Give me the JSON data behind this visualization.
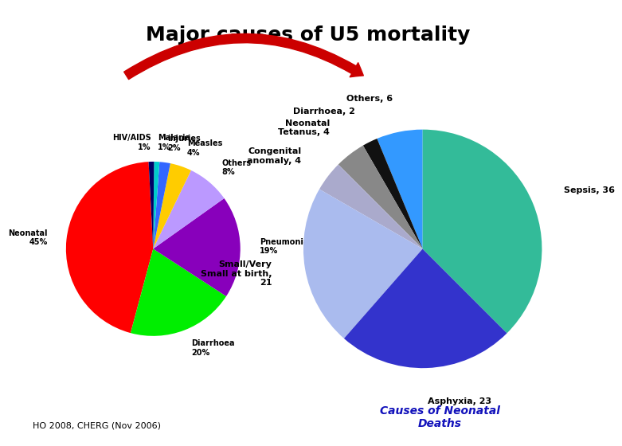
{
  "title": "Major causes of U5 mortality",
  "title_fontsize": 18,
  "title_fontweight": "bold",
  "background_color": "#ffffff",
  "footer_left": "HO 2008, CHERG (Nov 2006)",
  "footer_right": "Causes of Neonatal\nDeaths",
  "footer_right_color": "#1111bb",
  "left_pie": {
    "labels": [
      "Neonatal\n45%",
      "Diarrhoea\n20%",
      "Pneumonia\n19%",
      "Others\n8%",
      "Measles\n4%",
      "injuries\n2%",
      "Malaria\n1%",
      "HIV/AIDS\n1%"
    ],
    "values": [
      45,
      20,
      19,
      8,
      4,
      2,
      1,
      1
    ],
    "colors": [
      "#ff0000",
      "#00ee00",
      "#8800bb",
      "#bb99ff",
      "#ffcc00",
      "#3366ff",
      "#00cccc",
      "#000066"
    ],
    "startangle": 93,
    "label_distance": 1.22
  },
  "right_pie": {
    "labels": [
      "Others, 6",
      "Diarrhoea, 2",
      "Neonatal\nTetanus, 4",
      "Congenital\nanomaly, 4",
      "Small/Very\nSmall at birth,\n21",
      "Asphyxia, 23",
      "Sepsis, 36"
    ],
    "values": [
      6,
      2,
      4,
      4,
      21,
      23,
      36
    ],
    "colors": [
      "#3399ff",
      "#111111",
      "#888888",
      "#aaaacc",
      "#aabbee",
      "#3333cc",
      "#33bb99"
    ],
    "startangle": 90,
    "label_distance": 1.28
  }
}
